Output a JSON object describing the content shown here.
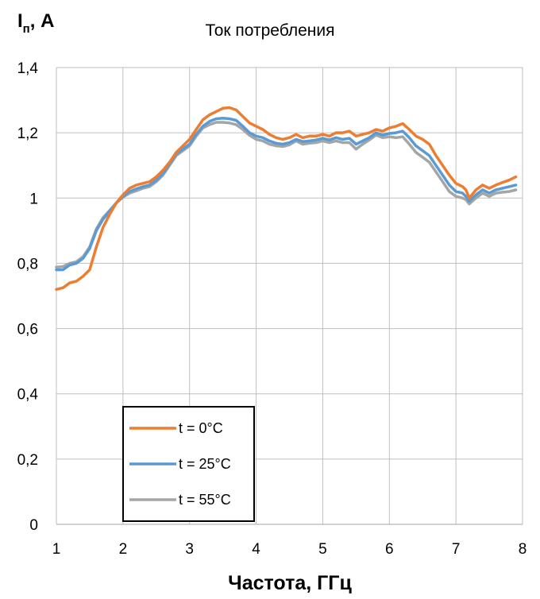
{
  "chart_data": {
    "type": "line",
    "title": "Ток потребления",
    "ylabel_main": "I",
    "ylabel_sub": "п",
    "ylabel_unit": ", А",
    "xlabel": "Частота, ГГц",
    "xlim": [
      1,
      8
    ],
    "ylim": [
      0,
      1.4
    ],
    "x_ticks": [
      1,
      2,
      3,
      4,
      5,
      6,
      7,
      8
    ],
    "x_tick_labels": [
      "1",
      "2",
      "3",
      "4",
      "5",
      "6",
      "7",
      "8"
    ],
    "y_ticks": [
      0,
      0.2,
      0.4,
      0.6,
      0.8,
      1.0,
      1.2,
      1.4
    ],
    "y_tick_labels": [
      "0",
      "0,2",
      "0,4",
      "0,6",
      "0,8",
      "1",
      "1,2",
      "1,4"
    ],
    "grid": true,
    "legend_position": "bottom-left",
    "series": [
      {
        "name": "t = 0°C",
        "color": "#ED7D31",
        "points": [
          [
            1.0,
            0.72
          ],
          [
            1.1,
            0.725
          ],
          [
            1.2,
            0.74
          ],
          [
            1.3,
            0.745
          ],
          [
            1.4,
            0.76
          ],
          [
            1.5,
            0.78
          ],
          [
            1.6,
            0.85
          ],
          [
            1.7,
            0.91
          ],
          [
            1.8,
            0.95
          ],
          [
            1.9,
            0.985
          ],
          [
            2.0,
            1.01
          ],
          [
            2.1,
            1.03
          ],
          [
            2.2,
            1.04
          ],
          [
            2.3,
            1.045
          ],
          [
            2.4,
            1.05
          ],
          [
            2.5,
            1.065
          ],
          [
            2.6,
            1.085
          ],
          [
            2.7,
            1.11
          ],
          [
            2.8,
            1.14
          ],
          [
            2.9,
            1.16
          ],
          [
            3.0,
            1.18
          ],
          [
            3.1,
            1.21
          ],
          [
            3.2,
            1.24
          ],
          [
            3.3,
            1.255
          ],
          [
            3.4,
            1.265
          ],
          [
            3.5,
            1.275
          ],
          [
            3.6,
            1.277
          ],
          [
            3.7,
            1.27
          ],
          [
            3.8,
            1.25
          ],
          [
            3.9,
            1.23
          ],
          [
            4.0,
            1.22
          ],
          [
            4.1,
            1.21
          ],
          [
            4.2,
            1.195
          ],
          [
            4.3,
            1.185
          ],
          [
            4.4,
            1.18
          ],
          [
            4.5,
            1.185
          ],
          [
            4.6,
            1.195
          ],
          [
            4.7,
            1.185
          ],
          [
            4.8,
            1.19
          ],
          [
            4.9,
            1.19
          ],
          [
            5.0,
            1.195
          ],
          [
            5.1,
            1.19
          ],
          [
            5.2,
            1.2
          ],
          [
            5.3,
            1.2
          ],
          [
            5.4,
            1.205
          ],
          [
            5.5,
            1.19
          ],
          [
            5.6,
            1.195
          ],
          [
            5.7,
            1.2
          ],
          [
            5.8,
            1.21
          ],
          [
            5.9,
            1.205
          ],
          [
            6.0,
            1.215
          ],
          [
            6.1,
            1.22
          ],
          [
            6.2,
            1.228
          ],
          [
            6.3,
            1.21
          ],
          [
            6.4,
            1.19
          ],
          [
            6.5,
            1.18
          ],
          [
            6.6,
            1.165
          ],
          [
            6.7,
            1.13
          ],
          [
            6.8,
            1.1
          ],
          [
            6.9,
            1.07
          ],
          [
            7.0,
            1.045
          ],
          [
            7.1,
            1.035
          ],
          [
            7.15,
            1.025
          ],
          [
            7.2,
            1.0
          ],
          [
            7.3,
            1.025
          ],
          [
            7.4,
            1.04
          ],
          [
            7.5,
            1.03
          ],
          [
            7.6,
            1.04
          ],
          [
            7.7,
            1.048
          ],
          [
            7.8,
            1.055
          ],
          [
            7.9,
            1.065
          ]
        ]
      },
      {
        "name": "t = 25°C",
        "color": "#5B9BD5",
        "points": [
          [
            1.0,
            0.78
          ],
          [
            1.1,
            0.78
          ],
          [
            1.2,
            0.795
          ],
          [
            1.3,
            0.8
          ],
          [
            1.4,
            0.815
          ],
          [
            1.5,
            0.845
          ],
          [
            1.6,
            0.9
          ],
          [
            1.7,
            0.935
          ],
          [
            1.8,
            0.96
          ],
          [
            1.9,
            0.985
          ],
          [
            2.0,
            1.005
          ],
          [
            2.1,
            1.02
          ],
          [
            2.2,
            1.028
          ],
          [
            2.3,
            1.035
          ],
          [
            2.4,
            1.04
          ],
          [
            2.5,
            1.055
          ],
          [
            2.6,
            1.075
          ],
          [
            2.7,
            1.105
          ],
          [
            2.8,
            1.135
          ],
          [
            2.9,
            1.15
          ],
          [
            3.0,
            1.165
          ],
          [
            3.1,
            1.195
          ],
          [
            3.2,
            1.22
          ],
          [
            3.3,
            1.235
          ],
          [
            3.4,
            1.243
          ],
          [
            3.5,
            1.245
          ],
          [
            3.6,
            1.243
          ],
          [
            3.7,
            1.238
          ],
          [
            3.8,
            1.22
          ],
          [
            3.9,
            1.2
          ],
          [
            4.0,
            1.19
          ],
          [
            4.1,
            1.185
          ],
          [
            4.2,
            1.175
          ],
          [
            4.3,
            1.168
          ],
          [
            4.4,
            1.165
          ],
          [
            4.5,
            1.17
          ],
          [
            4.6,
            1.18
          ],
          [
            4.7,
            1.173
          ],
          [
            4.8,
            1.175
          ],
          [
            4.9,
            1.178
          ],
          [
            5.0,
            1.183
          ],
          [
            5.1,
            1.178
          ],
          [
            5.2,
            1.185
          ],
          [
            5.3,
            1.18
          ],
          [
            5.4,
            1.183
          ],
          [
            5.5,
            1.165
          ],
          [
            5.6,
            1.175
          ],
          [
            5.7,
            1.185
          ],
          [
            5.8,
            1.2
          ],
          [
            5.9,
            1.193
          ],
          [
            6.0,
            1.198
          ],
          [
            6.1,
            1.2
          ],
          [
            6.2,
            1.205
          ],
          [
            6.3,
            1.185
          ],
          [
            6.4,
            1.16
          ],
          [
            6.5,
            1.145
          ],
          [
            6.6,
            1.13
          ],
          [
            6.7,
            1.1
          ],
          [
            6.8,
            1.07
          ],
          [
            6.9,
            1.04
          ],
          [
            7.0,
            1.02
          ],
          [
            7.1,
            1.015
          ],
          [
            7.15,
            1.005
          ],
          [
            7.2,
            0.99
          ],
          [
            7.3,
            1.01
          ],
          [
            7.4,
            1.025
          ],
          [
            7.5,
            1.015
          ],
          [
            7.6,
            1.025
          ],
          [
            7.7,
            1.03
          ],
          [
            7.8,
            1.035
          ],
          [
            7.9,
            1.04
          ]
        ]
      },
      {
        "name": "t = 55°C",
        "color": "#A5A5A5",
        "points": [
          [
            1.0,
            0.788
          ],
          [
            1.1,
            0.79
          ],
          [
            1.2,
            0.8
          ],
          [
            1.3,
            0.805
          ],
          [
            1.4,
            0.82
          ],
          [
            1.5,
            0.85
          ],
          [
            1.6,
            0.905
          ],
          [
            1.7,
            0.94
          ],
          [
            1.8,
            0.962
          ],
          [
            1.9,
            0.985
          ],
          [
            2.0,
            1.003
          ],
          [
            2.1,
            1.015
          ],
          [
            2.2,
            1.022
          ],
          [
            2.3,
            1.03
          ],
          [
            2.4,
            1.035
          ],
          [
            2.5,
            1.05
          ],
          [
            2.6,
            1.07
          ],
          [
            2.7,
            1.1
          ],
          [
            2.8,
            1.13
          ],
          [
            2.9,
            1.145
          ],
          [
            3.0,
            1.16
          ],
          [
            3.1,
            1.19
          ],
          [
            3.2,
            1.215
          ],
          [
            3.3,
            1.225
          ],
          [
            3.4,
            1.232
          ],
          [
            3.5,
            1.232
          ],
          [
            3.6,
            1.23
          ],
          [
            3.7,
            1.225
          ],
          [
            3.8,
            1.21
          ],
          [
            3.9,
            1.192
          ],
          [
            4.0,
            1.18
          ],
          [
            4.1,
            1.175
          ],
          [
            4.2,
            1.165
          ],
          [
            4.3,
            1.16
          ],
          [
            4.4,
            1.158
          ],
          [
            4.5,
            1.163
          ],
          [
            4.6,
            1.175
          ],
          [
            4.7,
            1.165
          ],
          [
            4.8,
            1.168
          ],
          [
            4.9,
            1.17
          ],
          [
            5.0,
            1.175
          ],
          [
            5.1,
            1.17
          ],
          [
            5.2,
            1.175
          ],
          [
            5.3,
            1.17
          ],
          [
            5.4,
            1.17
          ],
          [
            5.5,
            1.15
          ],
          [
            5.6,
            1.165
          ],
          [
            5.7,
            1.178
          ],
          [
            5.8,
            1.193
          ],
          [
            5.9,
            1.185
          ],
          [
            6.0,
            1.188
          ],
          [
            6.1,
            1.185
          ],
          [
            6.2,
            1.188
          ],
          [
            6.3,
            1.165
          ],
          [
            6.4,
            1.14
          ],
          [
            6.5,
            1.125
          ],
          [
            6.6,
            1.11
          ],
          [
            6.7,
            1.08
          ],
          [
            6.8,
            1.05
          ],
          [
            6.9,
            1.02
          ],
          [
            7.0,
            1.005
          ],
          [
            7.1,
            1.0
          ],
          [
            7.15,
            0.995
          ],
          [
            7.2,
            0.982
          ],
          [
            7.3,
            1.0
          ],
          [
            7.4,
            1.015
          ],
          [
            7.5,
            1.005
          ],
          [
            7.6,
            1.015
          ],
          [
            7.7,
            1.018
          ],
          [
            7.8,
            1.02
          ],
          [
            7.9,
            1.025
          ]
        ]
      }
    ]
  }
}
